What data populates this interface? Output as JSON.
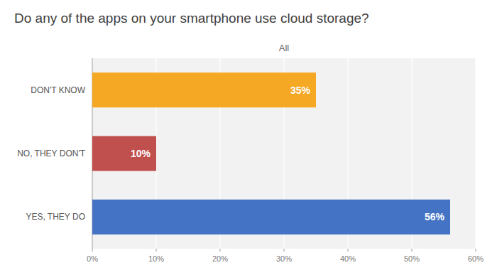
{
  "chart_data": {
    "type": "bar",
    "orientation": "horizontal",
    "title": "Do any of the apps on your smartphone use cloud storage?",
    "subtitle": "All",
    "categories": [
      "DON'T KNOW",
      "NO, THEY DON'T",
      "YES, THEY DO"
    ],
    "values": [
      35,
      10,
      56
    ],
    "colors": [
      "#F5A823",
      "#C0504D",
      "#4472C4"
    ],
    "data_labels": true,
    "value_labels": [
      "35%",
      "10%",
      "56%"
    ],
    "xlim": [
      0,
      60
    ],
    "xticks": [
      {
        "value": 0,
        "label": "0%"
      },
      {
        "value": 10,
        "label": "10%"
      },
      {
        "value": 20,
        "label": "20%"
      },
      {
        "value": 30,
        "label": "30%"
      },
      {
        "value": 40,
        "label": "40%"
      },
      {
        "value": 50,
        "label": "50%"
      },
      {
        "value": 60,
        "label": "60%"
      }
    ],
    "grid": true
  }
}
